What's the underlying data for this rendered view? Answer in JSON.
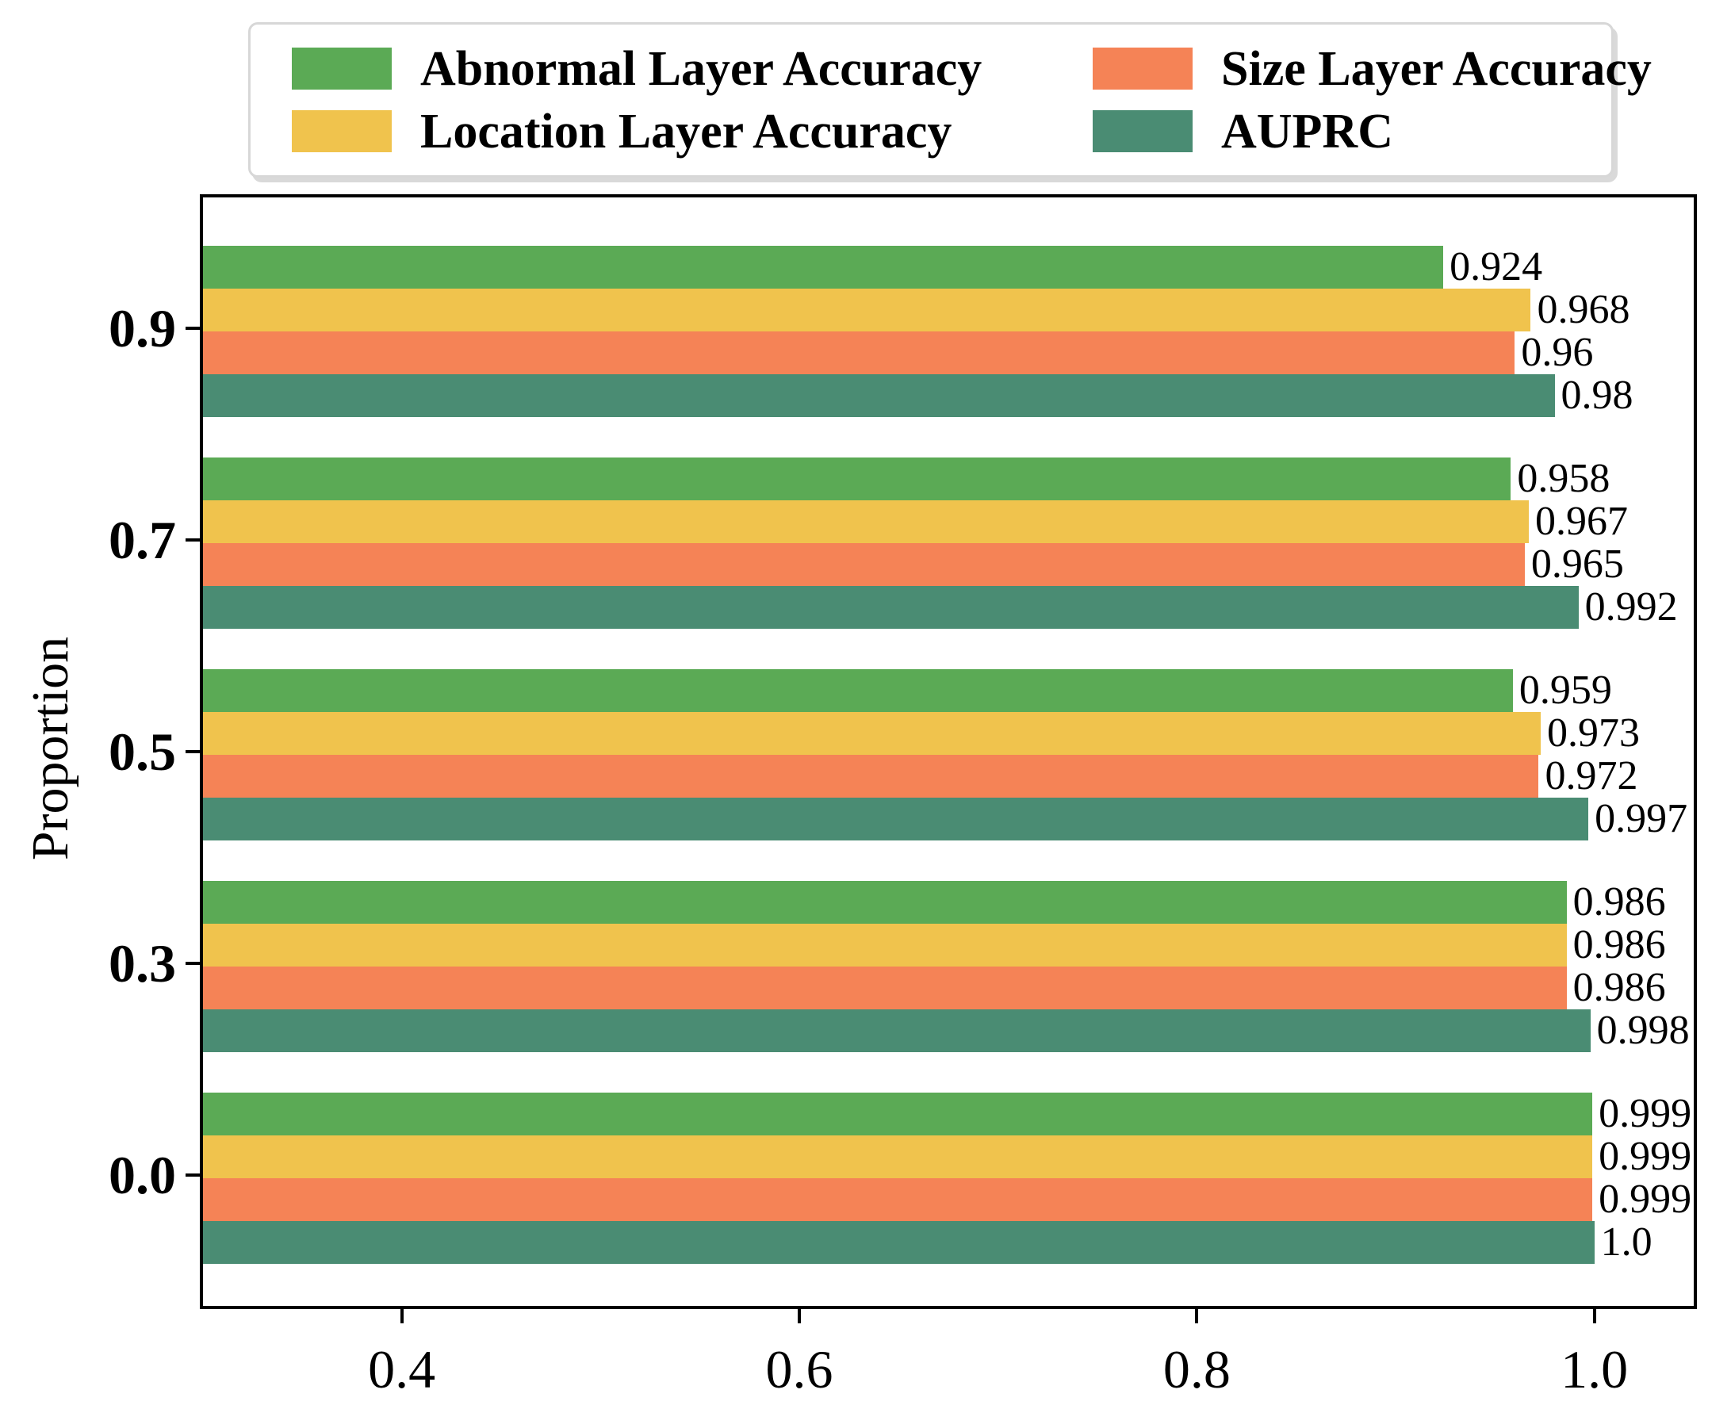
{
  "chart_data": {
    "type": "bar",
    "orientation": "horizontal",
    "title": "",
    "xlabel": "",
    "ylabel": "Proportion",
    "grid": false,
    "legend_position": "top",
    "xlim": [
      0.3,
      1.05
    ],
    "xticks": {
      "values": [
        0.4,
        0.6,
        0.8,
        1.0
      ],
      "labels": [
        "0.4",
        "0.6",
        "0.8",
        "1.0"
      ]
    },
    "categories": [
      "0.9",
      "0.7",
      "0.5",
      "0.3",
      "0.0"
    ],
    "series": [
      {
        "name": "Abnormal Layer Accuracy",
        "color": "#5baa55",
        "values": [
          0.924,
          0.958,
          0.959,
          0.986,
          0.999
        ],
        "labels": [
          "0.924",
          "0.958",
          "0.959",
          "0.986",
          "0.999"
        ]
      },
      {
        "name": "Location Layer Accuracy",
        "color": "#f0c34d",
        "values": [
          0.968,
          0.967,
          0.973,
          0.986,
          0.999
        ],
        "labels": [
          "0.968",
          "0.967",
          "0.973",
          "0.986",
          "0.999"
        ]
      },
      {
        "name": "Size Layer Accuracy",
        "color": "#f58356",
        "values": [
          0.96,
          0.965,
          0.972,
          0.986,
          0.999
        ],
        "labels": [
          "0.96",
          "0.965",
          "0.972",
          "0.986",
          "0.999"
        ]
      },
      {
        "name": "AUPRC",
        "color": "#4a8c73",
        "values": [
          0.98,
          0.992,
          0.997,
          0.998,
          1.0
        ],
        "labels": [
          "0.98",
          "0.992",
          "0.997",
          "0.998",
          "1.0"
        ]
      }
    ]
  }
}
